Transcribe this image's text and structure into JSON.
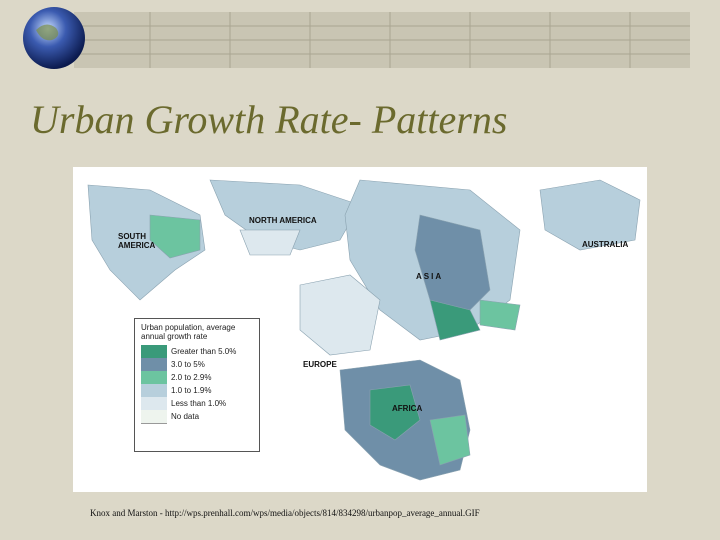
{
  "slide": {
    "title": "Urban Growth Rate- Patterns",
    "map": {
      "labels": [
        "SOUTH AMERICA",
        "NORTH AMERICA",
        "AUSTRALIA",
        "ASIA",
        "EUROPE",
        "AFRICA"
      ],
      "legend": {
        "title": "Urban population, average annual growth rate",
        "items": [
          "Greater than 5.0%",
          "3.0 to 5%",
          "2.0 to 2.9%",
          "1.0 to 1.9%",
          "Less than 1.0%",
          "No data"
        ]
      }
    },
    "caption": "Knox and Marston - http://wps.prenhall.com/wps/media/objects/814/834298/urbanpop_average_annual.GIF"
  }
}
